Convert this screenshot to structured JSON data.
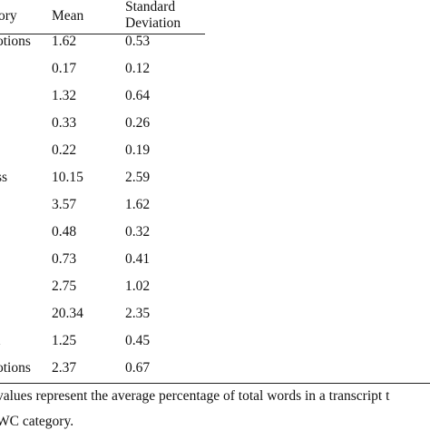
{
  "table": {
    "header": [
      "ory",
      "Mean",
      "Standard Deviation"
    ],
    "rows": [
      {
        "label": "otions",
        "mean": 1.62,
        "sd": 0.53
      },
      {
        "mean": 0.17,
        "sd": 0.12
      },
      {
        "mean": 1.32,
        "sd": 0.64
      },
      {
        "mean": 0.33,
        "sd": 0.26
      },
      {
        "mean": 0.22,
        "sd": 0.19
      },
      {
        "label": "ss",
        "mean": 10.15,
        "sd": 2.59
      },
      {
        "mean": 3.57,
        "sd": 1.62
      },
      {
        "mean": 0.48,
        "sd": 0.32
      },
      {
        "mean": 0.73,
        "sd": 0.41
      },
      {
        "mean": 2.75,
        "sd": 1.02
      },
      {
        "mean": 20.34,
        "sd": 2.35
      },
      {
        "label": "t",
        "mean": 1.25,
        "sd": 0.45
      },
      {
        "label": "otions",
        "mean": 2.37,
        "sd": 0.67
      }
    ]
  },
  "footnote": [
    "values represent the average percentage of total words in a transcript t",
    "WC category."
  ]
}
